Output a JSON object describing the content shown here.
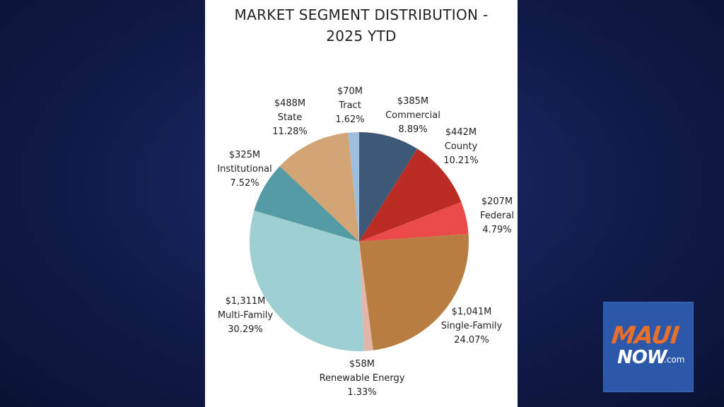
{
  "chart_data": {
    "type": "pie",
    "title_lines": [
      "MARKET SEGMENT DISTRIBUTION -",
      "2025 YTD"
    ],
    "slices": [
      {
        "label": "Commercial",
        "amount": "$385M",
        "percent": 8.89,
        "percent_label": "8.89%",
        "color": "#3e5877"
      },
      {
        "label": "County",
        "amount": "$442M",
        "percent": 10.21,
        "percent_label": "10.21%",
        "color": "#bb2c24"
      },
      {
        "label": "Federal",
        "amount": "$207M",
        "percent": 4.79,
        "percent_label": "4.79%",
        "color": "#eb4a4a"
      },
      {
        "label": "Single-Family",
        "amount": "$1,041M",
        "percent": 24.07,
        "percent_label": "24.07%",
        "color": "#b87d40"
      },
      {
        "label": "Renewable Energy",
        "amount": "$58M",
        "percent": 1.33,
        "percent_label": "1.33%",
        "color": "#e4b5a9"
      },
      {
        "label": "Multi-Family",
        "amount": "$1,311M",
        "percent": 30.29,
        "percent_label": "30.29%",
        "color": "#9ecfd3"
      },
      {
        "label": "Institutional",
        "amount": "$325M",
        "percent": 7.52,
        "percent_label": "7.52%",
        "color": "#559ba3"
      },
      {
        "label": "State",
        "amount": "$488M",
        "percent": 11.28,
        "percent_label": "11.28%",
        "color": "#d4a574"
      },
      {
        "label": "Tract",
        "amount": "$70M",
        "percent": 1.62,
        "percent_label": "1.62%",
        "color": "#9ebedd"
      }
    ]
  },
  "logo": {
    "maui": "MAUI",
    "now": "NOW",
    "com": ".com"
  }
}
